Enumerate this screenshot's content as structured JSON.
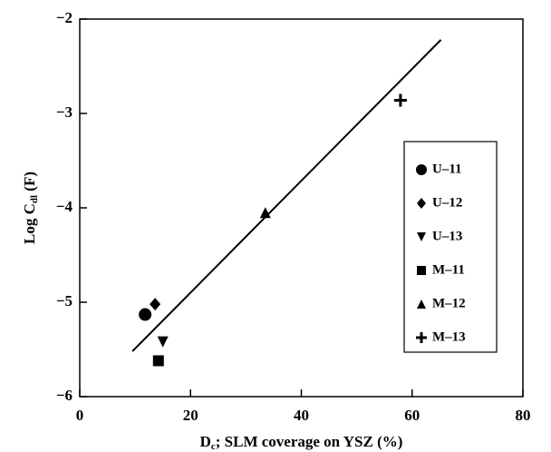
{
  "chart_data": {
    "type": "scatter",
    "x_label": [
      "D",
      "c",
      "; SLM coverage on YSZ (%)"
    ],
    "y_label": [
      "Log C",
      "dl",
      " (F)"
    ],
    "xlim": [
      0,
      80
    ],
    "xticks": [
      0,
      20,
      40,
      60,
      80
    ],
    "ylim": [
      -6,
      -2
    ],
    "yticks": [
      -6,
      -5,
      -4,
      -3,
      -2
    ],
    "series": [
      {
        "name": "U–11",
        "marker": "circle",
        "color": "#000000",
        "x": [
          11.8
        ],
        "values": [
          -5.13
        ]
      },
      {
        "name": "U–12",
        "marker": "diamond",
        "color": "#000000",
        "x": [
          13.6
        ],
        "values": [
          -5.02
        ]
      },
      {
        "name": "U–13",
        "marker": "triangle-down",
        "color": "#000000",
        "x": [
          15
        ],
        "values": [
          -5.42
        ]
      },
      {
        "name": "M–11",
        "marker": "square",
        "color": "#000000",
        "x": [
          14.2
        ],
        "values": [
          -5.62
        ]
      },
      {
        "name": "M–12",
        "marker": "triangle-up",
        "color": "#000000",
        "x": [
          33.5
        ],
        "values": [
          -4.05
        ]
      },
      {
        "name": "M–13",
        "marker": "plus",
        "color": "#000000",
        "x": [
          57.9
        ],
        "values": [
          -2.86
        ]
      }
    ],
    "fit_line": {
      "x": [
        9.5,
        65.2
      ],
      "values": [
        -5.52,
        -2.22
      ]
    },
    "legend": "right"
  }
}
